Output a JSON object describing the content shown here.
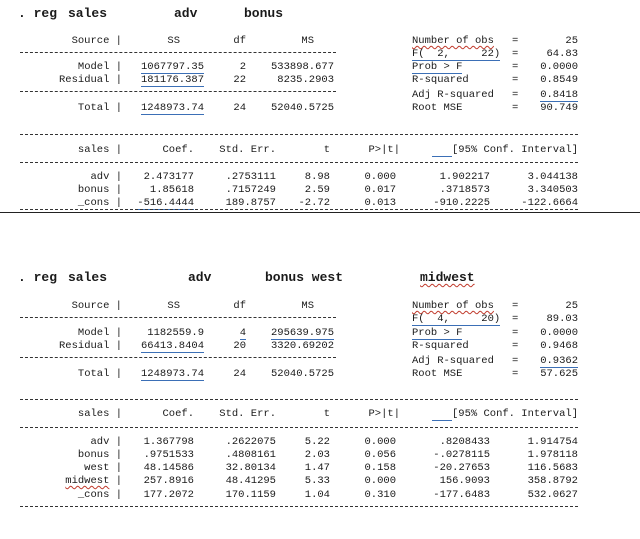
{
  "block1": {
    "command": {
      "prefix": ". reg",
      "dep": "sales",
      "vars": [
        "adv",
        "bonus"
      ]
    },
    "anova_header": {
      "source": "Source |",
      "ss": "SS",
      "df": "df",
      "ms": "MS"
    },
    "anova_rows": [
      {
        "label": "Model |",
        "ss": "1067797.35",
        "df": "2",
        "ms": "533898.677"
      },
      {
        "label": "Residual |",
        "ss": "181176.387",
        "df": "22",
        "ms": "8235.2903"
      }
    ],
    "anova_total": {
      "label": "Total |",
      "ss": "1248973.74",
      "df": "24",
      "ms": "52040.5725"
    },
    "stats": [
      {
        "label": "Number of obs",
        "eq": "=",
        "value": "25"
      },
      {
        "label": "F(  2,     22)",
        "eq": "=",
        "value": "64.83"
      },
      {
        "label": "Prob > F",
        "eq": "=",
        "value": "0.0000"
      },
      {
        "label": "R-squared",
        "eq": "=",
        "value": "0.8549"
      },
      {
        "label": "Adj R-squared",
        "eq": "=",
        "value": "0.8418"
      },
      {
        "label": "Root MSE",
        "eq": "=",
        "value": "90.749"
      }
    ],
    "coef_header": {
      "dep": "sales |",
      "coef": "Coef.",
      "se": "Std. Err.",
      "t": "t",
      "p": "P>|t|",
      "ci": "[95% Conf. Interval]"
    },
    "coef_rows": [
      {
        "name": "adv",
        "coef": "2.473177",
        "se": ".2753111",
        "t": "8.98",
        "p": "0.000",
        "lo": "1.902217",
        "hi": "3.044138"
      },
      {
        "name": "bonus",
        "coef": "1.85618",
        "se": ".7157249",
        "t": "2.59",
        "p": "0.017",
        "lo": ".3718573",
        "hi": "3.340503"
      },
      {
        "name": "_cons",
        "coef": "-516.4444",
        "se": "189.8757",
        "t": "-2.72",
        "p": "0.013",
        "lo": "-910.2225",
        "hi": "-122.6664"
      }
    ]
  },
  "block2": {
    "command": {
      "prefix": ". reg",
      "dep": "sales",
      "vars": [
        "adv",
        "bonus west",
        "midwest"
      ]
    },
    "anova_header": {
      "source": "Source |",
      "ss": "SS",
      "df": "df",
      "ms": "MS"
    },
    "anova_rows": [
      {
        "label": "Model |",
        "ss": "1182559.9",
        "df": "4",
        "ms": "295639.975"
      },
      {
        "label": "Residual |",
        "ss": "66413.8404",
        "df": "20",
        "ms": "3320.69202"
      }
    ],
    "anova_total": {
      "label": "Total |",
      "ss": "1248973.74",
      "df": "24",
      "ms": "52040.5725"
    },
    "stats": [
      {
        "label": "Number of obs",
        "eq": "=",
        "value": "25"
      },
      {
        "label": "F(  4,     20)",
        "eq": "=",
        "value": "89.03"
      },
      {
        "label": "Prob > F",
        "eq": "=",
        "value": "0.0000"
      },
      {
        "label": "R-squared",
        "eq": "=",
        "value": "0.9468"
      },
      {
        "label": "Adj R-squared",
        "eq": "=",
        "value": "0.9362"
      },
      {
        "label": "Root MSE",
        "eq": "=",
        "value": "57.625"
      }
    ],
    "coef_header": {
      "dep": "sales |",
      "coef": "Coef.",
      "se": "Std. Err.",
      "t": "t",
      "p": "P>|t|",
      "ci": "[95% Conf. Interval]"
    },
    "coef_rows": [
      {
        "name": "adv",
        "coef": "1.367798",
        "se": ".2622075",
        "t": "5.22",
        "p": "0.000",
        "lo": ".8208433",
        "hi": "1.914754"
      },
      {
        "name": "bonus",
        "coef": ".9751533",
        "se": ".4808161",
        "t": "2.03",
        "p": "0.056",
        "lo": "-.0278115",
        "hi": "1.978118"
      },
      {
        "name": "west",
        "coef": "48.14586",
        "se": "32.80134",
        "t": "1.47",
        "p": "0.158",
        "lo": "-20.27653",
        "hi": "116.5683"
      },
      {
        "name": "midwest",
        "coef": "257.8916",
        "se": "48.41295",
        "t": "5.33",
        "p": "0.000",
        "lo": "156.9093",
        "hi": "358.8792"
      },
      {
        "name": "_cons",
        "coef": "177.2072",
        "se": "170.1159",
        "t": "1.04",
        "p": "0.310",
        "lo": "-177.6483",
        "hi": "532.0627"
      }
    ]
  }
}
